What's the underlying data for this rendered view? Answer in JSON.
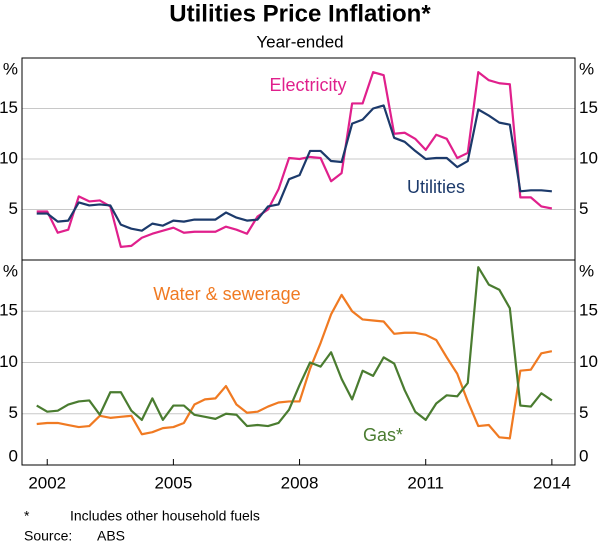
{
  "title": "Utilities Price Inflation*",
  "subtitle": "Year-ended",
  "notes": [
    {
      "marker": "*",
      "text": "Includes other household fuels"
    }
  ],
  "source": {
    "label": "Source:",
    "text": "ABS"
  },
  "chart_data": [
    {
      "type": "line",
      "ylabel": "%",
      "grid": true,
      "xlim": [
        2001.4,
        2014.55
      ],
      "ylim": [
        0,
        20
      ],
      "yticks": [
        5,
        10,
        15
      ],
      "x": [
        2001.75,
        2002,
        2002.25,
        2002.5,
        2002.75,
        2003,
        2003.25,
        2003.5,
        2003.75,
        2004,
        2004.25,
        2004.5,
        2004.75,
        2005,
        2005.25,
        2005.5,
        2005.75,
        2006,
        2006.25,
        2006.5,
        2006.75,
        2007,
        2007.25,
        2007.5,
        2007.75,
        2008,
        2008.25,
        2008.5,
        2008.75,
        2009,
        2009.25,
        2009.5,
        2009.75,
        2010,
        2010.25,
        2010.5,
        2010.75,
        2011,
        2011.25,
        2011.5,
        2011.75,
        2012,
        2012.25,
        2012.5,
        2012.75,
        2013,
        2013.25,
        2013.5,
        2013.75,
        2014
      ],
      "series": [
        {
          "name": "Electricity",
          "color": "#e0208c",
          "values": [
            4.8,
            4.8,
            2.7,
            3.0,
            6.3,
            5.8,
            5.9,
            5.3,
            1.3,
            1.4,
            2.2,
            2.6,
            2.9,
            3.2,
            2.7,
            2.8,
            2.8,
            2.8,
            3.3,
            3.0,
            2.6,
            4.3,
            5.0,
            7.0,
            10.1,
            10.0,
            10.2,
            10.1,
            7.8,
            8.6,
            15.5,
            15.5,
            18.6,
            18.3,
            12.5,
            12.6,
            12.0,
            10.9,
            12.4,
            12.0,
            10.1,
            10.6,
            18.6,
            17.8,
            17.5,
            17.4,
            6.2,
            6.2,
            5.3,
            5.1
          ]
        },
        {
          "name": "Utilities",
          "color": "#1c3a6b",
          "values": [
            4.6,
            4.6,
            3.8,
            3.9,
            5.7,
            5.4,
            5.5,
            5.4,
            3.5,
            3.1,
            2.9,
            3.6,
            3.4,
            3.9,
            3.8,
            4.0,
            4.0,
            4.0,
            4.7,
            4.2,
            3.9,
            4.0,
            5.3,
            5.5,
            8.0,
            8.4,
            10.8,
            10.8,
            9.8,
            9.7,
            13.5,
            13.9,
            15.0,
            15.3,
            12.1,
            11.7,
            10.8,
            10.0,
            10.1,
            10.1,
            9.2,
            9.8,
            14.9,
            14.3,
            13.6,
            13.4,
            6.8,
            6.9,
            6.9,
            6.8
          ]
        }
      ]
    },
    {
      "type": "line",
      "ylabel": "%",
      "grid": true,
      "xlim": [
        2001.4,
        2014.55
      ],
      "ylim": [
        0,
        20
      ],
      "yticks": [
        0,
        5,
        10,
        15
      ],
      "xticks": [
        2002,
        2005,
        2008,
        2011,
        2014
      ],
      "x": [
        2001.75,
        2002,
        2002.25,
        2002.5,
        2002.75,
        2003,
        2003.25,
        2003.5,
        2003.75,
        2004,
        2004.25,
        2004.5,
        2004.75,
        2005,
        2005.25,
        2005.5,
        2005.75,
        2006,
        2006.25,
        2006.5,
        2006.75,
        2007,
        2007.25,
        2007.5,
        2007.75,
        2008,
        2008.25,
        2008.5,
        2008.75,
        2009,
        2009.25,
        2009.5,
        2009.75,
        2010,
        2010.25,
        2010.5,
        2010.75,
        2011,
        2011.25,
        2011.5,
        2011.75,
        2012,
        2012.25,
        2012.5,
        2012.75,
        2013,
        2013.25,
        2013.5,
        2013.75,
        2014
      ],
      "series": [
        {
          "name": "Water & sewerage",
          "color": "#f07a22",
          "values": [
            4.0,
            4.1,
            4.1,
            3.9,
            3.7,
            3.8,
            4.8,
            4.6,
            4.7,
            4.8,
            3.0,
            3.2,
            3.6,
            3.7,
            4.1,
            5.9,
            6.4,
            6.5,
            7.7,
            5.9,
            5.1,
            5.2,
            5.7,
            6.1,
            6.2,
            6.2,
            9.4,
            11.9,
            14.7,
            16.6,
            15.0,
            14.2,
            14.1,
            14.0,
            12.8,
            12.9,
            12.9,
            12.7,
            12.2,
            10.5,
            8.9,
            6.2,
            3.8,
            3.9,
            2.7,
            2.6,
            9.2,
            9.3,
            10.9,
            11.1
          ]
        },
        {
          "name": "Gas*",
          "color": "#4a7c30",
          "values": [
            5.8,
            5.2,
            5.3,
            5.9,
            6.2,
            6.3,
            4.9,
            7.1,
            7.1,
            5.3,
            4.4,
            6.5,
            4.4,
            5.8,
            5.8,
            4.9,
            4.7,
            4.5,
            5.0,
            4.9,
            3.8,
            3.9,
            3.8,
            4.1,
            5.4,
            7.8,
            10.0,
            9.6,
            11.0,
            8.4,
            6.4,
            9.2,
            8.7,
            10.5,
            9.9,
            7.3,
            5.2,
            4.4,
            6.0,
            6.8,
            6.7,
            8.0,
            19.3,
            17.6,
            17.1,
            15.3,
            5.8,
            5.7,
            7.0,
            6.3
          ]
        }
      ]
    }
  ]
}
